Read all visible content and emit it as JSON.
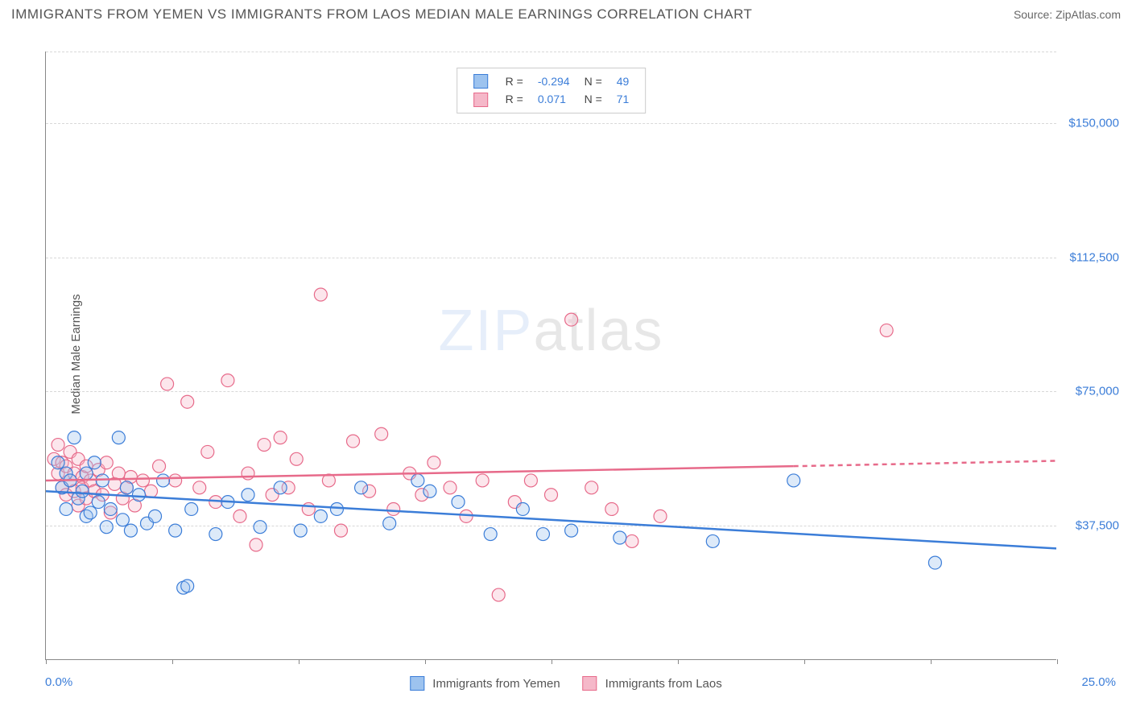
{
  "title": "IMMIGRANTS FROM YEMEN VS IMMIGRANTS FROM LAOS MEDIAN MALE EARNINGS CORRELATION CHART",
  "source_label": "Source: ",
  "source_name": "ZipAtlas.com",
  "ylabel": "Median Male Earnings",
  "watermark_a": "ZIP",
  "watermark_b": "atlas",
  "chart": {
    "type": "scatter",
    "xlim": [
      0,
      25
    ],
    "ylim": [
      0,
      170000
    ],
    "x_tick_step_pct": 12.5,
    "x_min_label": "0.0%",
    "x_max_label": "25.0%",
    "y_gridlines": [
      37500,
      75000,
      112500,
      150000,
      170000
    ],
    "y_labels": [
      "$37,500",
      "$75,000",
      "$112,500",
      "$150,000"
    ],
    "background_color": "#ffffff",
    "grid_color": "#d8d8d8",
    "axis_color": "#888888",
    "marker_radius": 8,
    "marker_fill_opacity": 0.35,
    "series": [
      {
        "name": "Immigrants from Yemen",
        "color_stroke": "#3b7dd8",
        "color_fill": "#9dc3ef",
        "R_label": "R =",
        "R": "-0.294",
        "N_label": "N =",
        "N": "49",
        "trend_start": [
          0,
          47000
        ],
        "trend_end": [
          25,
          31000
        ],
        "trend_dash_after": 25,
        "points": [
          [
            0.3,
            55000
          ],
          [
            0.4,
            48000
          ],
          [
            0.5,
            52000
          ],
          [
            0.5,
            42000
          ],
          [
            0.6,
            50000
          ],
          [
            0.7,
            62000
          ],
          [
            0.8,
            45000
          ],
          [
            0.9,
            47000
          ],
          [
            1.0,
            40000
          ],
          [
            1.0,
            52000
          ],
          [
            1.1,
            41000
          ],
          [
            1.2,
            55000
          ],
          [
            1.3,
            44000
          ],
          [
            1.4,
            50000
          ],
          [
            1.5,
            37000
          ],
          [
            1.6,
            42000
          ],
          [
            1.8,
            62000
          ],
          [
            1.9,
            39000
          ],
          [
            2.0,
            48000
          ],
          [
            2.1,
            36000
          ],
          [
            2.3,
            46000
          ],
          [
            2.5,
            38000
          ],
          [
            2.7,
            40000
          ],
          [
            2.9,
            50000
          ],
          [
            3.2,
            36000
          ],
          [
            3.4,
            20000
          ],
          [
            3.5,
            20500
          ],
          [
            3.6,
            42000
          ],
          [
            4.2,
            35000
          ],
          [
            4.5,
            44000
          ],
          [
            5.0,
            46000
          ],
          [
            5.3,
            37000
          ],
          [
            5.8,
            48000
          ],
          [
            6.3,
            36000
          ],
          [
            6.8,
            40000
          ],
          [
            7.2,
            42000
          ],
          [
            7.8,
            48000
          ],
          [
            8.5,
            38000
          ],
          [
            9.2,
            50000
          ],
          [
            9.5,
            47000
          ],
          [
            10.2,
            44000
          ],
          [
            11.0,
            35000
          ],
          [
            11.8,
            42000
          ],
          [
            12.3,
            35000
          ],
          [
            13.0,
            36000
          ],
          [
            14.2,
            34000
          ],
          [
            16.5,
            33000
          ],
          [
            18.5,
            50000
          ],
          [
            22.0,
            27000
          ]
        ]
      },
      {
        "name": "Immigrants from Laos",
        "color_stroke": "#e76a8a",
        "color_fill": "#f5b8c9",
        "R_label": "R =",
        "R": "0.071",
        "N_label": "N =",
        "N": "71",
        "trend_start": [
          0,
          50000
        ],
        "trend_end": [
          18.5,
          54000
        ],
        "trend_dash_after": 18.5,
        "trend_dash_end": [
          25,
          55500
        ],
        "points": [
          [
            0.2,
            56000
          ],
          [
            0.3,
            52000
          ],
          [
            0.3,
            60000
          ],
          [
            0.4,
            55000
          ],
          [
            0.4,
            48000
          ],
          [
            0.5,
            54000
          ],
          [
            0.5,
            46000
          ],
          [
            0.6,
            58000
          ],
          [
            0.6,
            50000
          ],
          [
            0.7,
            52000
          ],
          [
            0.7,
            47000
          ],
          [
            0.8,
            56000
          ],
          [
            0.8,
            43000
          ],
          [
            0.9,
            51000
          ],
          [
            0.9,
            48000
          ],
          [
            1.0,
            54000
          ],
          [
            1.0,
            45000
          ],
          [
            1.1,
            50000
          ],
          [
            1.2,
            47000
          ],
          [
            1.3,
            53000
          ],
          [
            1.4,
            46000
          ],
          [
            1.5,
            55000
          ],
          [
            1.6,
            41000
          ],
          [
            1.7,
            49000
          ],
          [
            1.8,
            52000
          ],
          [
            1.9,
            45000
          ],
          [
            2.0,
            48000
          ],
          [
            2.1,
            51000
          ],
          [
            2.2,
            43000
          ],
          [
            2.4,
            50000
          ],
          [
            2.6,
            47000
          ],
          [
            2.8,
            54000
          ],
          [
            3.0,
            77000
          ],
          [
            3.2,
            50000
          ],
          [
            3.5,
            72000
          ],
          [
            3.8,
            48000
          ],
          [
            4.0,
            58000
          ],
          [
            4.2,
            44000
          ],
          [
            4.5,
            78000
          ],
          [
            4.8,
            40000
          ],
          [
            5.0,
            52000
          ],
          [
            5.2,
            32000
          ],
          [
            5.4,
            60000
          ],
          [
            5.6,
            46000
          ],
          [
            5.8,
            62000
          ],
          [
            6.0,
            48000
          ],
          [
            6.2,
            56000
          ],
          [
            6.5,
            42000
          ],
          [
            6.8,
            102000
          ],
          [
            7.0,
            50000
          ],
          [
            7.3,
            36000
          ],
          [
            7.6,
            61000
          ],
          [
            8.0,
            47000
          ],
          [
            8.3,
            63000
          ],
          [
            8.6,
            42000
          ],
          [
            9.0,
            52000
          ],
          [
            9.3,
            46000
          ],
          [
            9.6,
            55000
          ],
          [
            10.0,
            48000
          ],
          [
            10.4,
            40000
          ],
          [
            10.8,
            50000
          ],
          [
            11.2,
            18000
          ],
          [
            11.6,
            44000
          ],
          [
            12.0,
            50000
          ],
          [
            12.5,
            46000
          ],
          [
            13.0,
            95000
          ],
          [
            13.5,
            48000
          ],
          [
            14.0,
            42000
          ],
          [
            14.5,
            33000
          ],
          [
            20.8,
            92000
          ],
          [
            15.2,
            40000
          ]
        ]
      }
    ]
  },
  "legend": {
    "series_a": "Immigrants from Yemen",
    "series_b": "Immigrants from Laos"
  }
}
